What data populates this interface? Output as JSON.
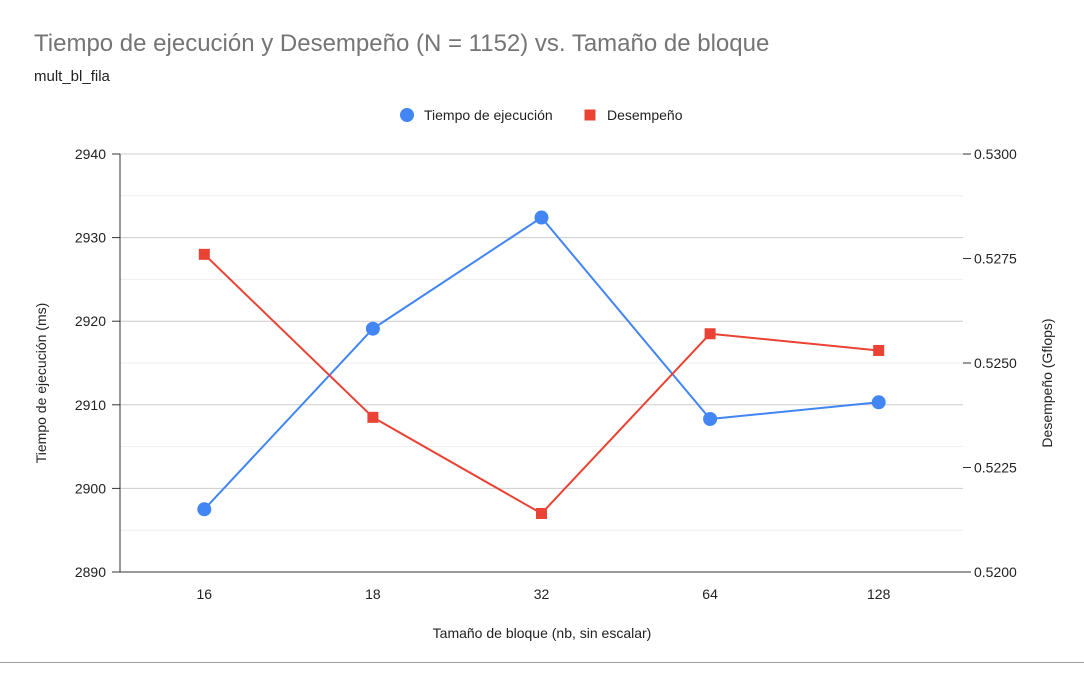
{
  "chart_data": {
    "type": "line",
    "title": "Tiempo de ejecución y Desempeño (N = 1152) vs. Tamaño de bloque",
    "subtitle": "mult_bl_fila",
    "xlabel": "Tamaño de bloque (nb, sin escalar)",
    "ylabel_left": "Tiempo de ejecución (ms)",
    "ylabel_right": "Desempeño (Gflops)",
    "categories": [
      "16",
      "18",
      "32",
      "64",
      "128"
    ],
    "y_left": {
      "min": 2890,
      "max": 2940,
      "ticks": [
        "2890",
        "2900",
        "2910",
        "2920",
        "2930",
        "2940"
      ]
    },
    "y_right": {
      "min": 0.52,
      "max": 0.53,
      "ticks": [
        "0.5200",
        "0.5225",
        "0.5250",
        "0.5275",
        "0.5300"
      ]
    },
    "grid": true,
    "legend_position": "top",
    "series": [
      {
        "name": "Tiempo de ejecución",
        "axis": "left",
        "marker": "circle",
        "color": "#4285f4",
        "values": [
          2897.5,
          2919.1,
          2932.4,
          2908.3,
          2910.3
        ]
      },
      {
        "name": "Desempeño",
        "axis": "right",
        "marker": "square",
        "color": "#ea4335",
        "values": [
          0.5276,
          0.5237,
          0.5214,
          0.5257,
          0.5253
        ]
      }
    ]
  }
}
